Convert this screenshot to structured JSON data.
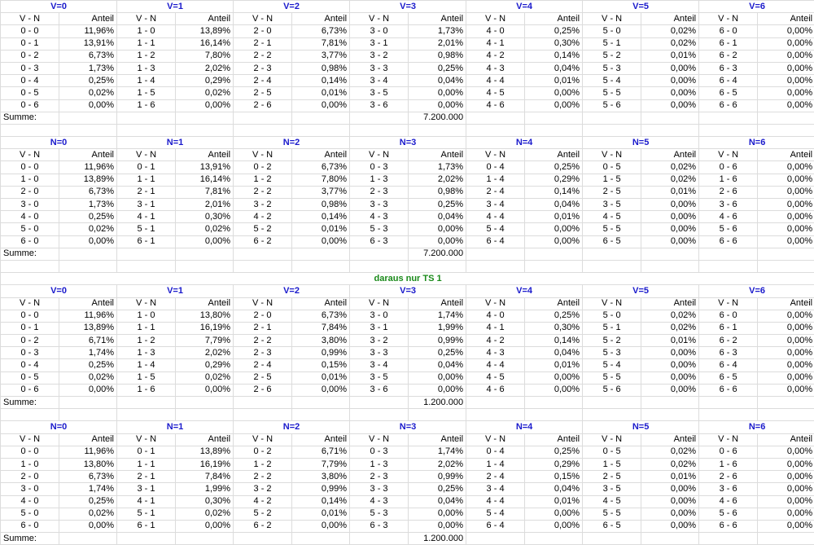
{
  "labels": {
    "vn": "V - N",
    "anteil": "Anteil",
    "summe": "Summe:"
  },
  "colors": {
    "header": "#1a1acc",
    "section": "#1a8a1a",
    "grid": "#dcdcdc"
  },
  "separator_title": "daraus nur TS 1",
  "blocks": [
    {
      "total": "7.200.000",
      "groups": [
        {
          "title": "V=0",
          "rows": [
            [
              "0 - 0",
              "11,96%"
            ],
            [
              "0 - 1",
              "13,91%"
            ],
            [
              "0 - 2",
              "6,73%"
            ],
            [
              "0 - 3",
              "1,73%"
            ],
            [
              "0 - 4",
              "0,25%"
            ],
            [
              "0 - 5",
              "0,02%"
            ],
            [
              "0 - 6",
              "0,00%"
            ]
          ]
        },
        {
          "title": "V=1",
          "rows": [
            [
              "1 - 0",
              "13,89%"
            ],
            [
              "1 - 1",
              "16,14%"
            ],
            [
              "1 - 2",
              "7,80%"
            ],
            [
              "1 - 3",
              "2,02%"
            ],
            [
              "1 - 4",
              "0,29%"
            ],
            [
              "1 - 5",
              "0,02%"
            ],
            [
              "1 - 6",
              "0,00%"
            ]
          ]
        },
        {
          "title": "V=2",
          "rows": [
            [
              "2 - 0",
              "6,73%"
            ],
            [
              "2 - 1",
              "7,81%"
            ],
            [
              "2 - 2",
              "3,77%"
            ],
            [
              "2 - 3",
              "0,98%"
            ],
            [
              "2 - 4",
              "0,14%"
            ],
            [
              "2 - 5",
              "0,01%"
            ],
            [
              "2 - 6",
              "0,00%"
            ]
          ]
        },
        {
          "title": "V=3",
          "rows": [
            [
              "3 - 0",
              "1,73%"
            ],
            [
              "3 - 1",
              "2,01%"
            ],
            [
              "3 - 2",
              "0,98%"
            ],
            [
              "3 - 3",
              "0,25%"
            ],
            [
              "3 - 4",
              "0,04%"
            ],
            [
              "3 - 5",
              "0,00%"
            ],
            [
              "3 - 6",
              "0,00%"
            ]
          ]
        },
        {
          "title": "V=4",
          "rows": [
            [
              "4 - 0",
              "0,25%"
            ],
            [
              "4 - 1",
              "0,30%"
            ],
            [
              "4 - 2",
              "0,14%"
            ],
            [
              "4 - 3",
              "0,04%"
            ],
            [
              "4 - 4",
              "0,01%"
            ],
            [
              "4 - 5",
              "0,00%"
            ],
            [
              "4 - 6",
              "0,00%"
            ]
          ]
        },
        {
          "title": "V=5",
          "rows": [
            [
              "5 - 0",
              "0,02%"
            ],
            [
              "5 - 1",
              "0,02%"
            ],
            [
              "5 - 2",
              "0,01%"
            ],
            [
              "5 - 3",
              "0,00%"
            ],
            [
              "5 - 4",
              "0,00%"
            ],
            [
              "5 - 5",
              "0,00%"
            ],
            [
              "5 - 6",
              "0,00%"
            ]
          ]
        },
        {
          "title": "V=6",
          "rows": [
            [
              "6 - 0",
              "0,00%"
            ],
            [
              "6 - 1",
              "0,00%"
            ],
            [
              "6 - 2",
              "0,00%"
            ],
            [
              "6 - 3",
              "0,00%"
            ],
            [
              "6 - 4",
              "0,00%"
            ],
            [
              "6 - 5",
              "0,00%"
            ],
            [
              "6 - 6",
              "0,00%"
            ]
          ]
        }
      ]
    },
    {
      "total": "7.200.000",
      "groups": [
        {
          "title": "N=0",
          "rows": [
            [
              "0 - 0",
              "11,96%"
            ],
            [
              "1 - 0",
              "13,89%"
            ],
            [
              "2 - 0",
              "6,73%"
            ],
            [
              "3 - 0",
              "1,73%"
            ],
            [
              "4 - 0",
              "0,25%"
            ],
            [
              "5 - 0",
              "0,02%"
            ],
            [
              "6 - 0",
              "0,00%"
            ]
          ]
        },
        {
          "title": "N=1",
          "rows": [
            [
              "0 - 1",
              "13,91%"
            ],
            [
              "1 - 1",
              "16,14%"
            ],
            [
              "2 - 1",
              "7,81%"
            ],
            [
              "3 - 1",
              "2,01%"
            ],
            [
              "4 - 1",
              "0,30%"
            ],
            [
              "5 - 1",
              "0,02%"
            ],
            [
              "6 - 1",
              "0,00%"
            ]
          ]
        },
        {
          "title": "N=2",
          "rows": [
            [
              "0 - 2",
              "6,73%"
            ],
            [
              "1 - 2",
              "7,80%"
            ],
            [
              "2 - 2",
              "3,77%"
            ],
            [
              "3 - 2",
              "0,98%"
            ],
            [
              "4 - 2",
              "0,14%"
            ],
            [
              "5 - 2",
              "0,01%"
            ],
            [
              "6 - 2",
              "0,00%"
            ]
          ]
        },
        {
          "title": "N=3",
          "rows": [
            [
              "0 - 3",
              "1,73%"
            ],
            [
              "1 - 3",
              "2,02%"
            ],
            [
              "2 - 3",
              "0,98%"
            ],
            [
              "3 - 3",
              "0,25%"
            ],
            [
              "4 - 3",
              "0,04%"
            ],
            [
              "5 - 3",
              "0,00%"
            ],
            [
              "6 - 3",
              "0,00%"
            ]
          ]
        },
        {
          "title": "N=4",
          "rows": [
            [
              "0 - 4",
              "0,25%"
            ],
            [
              "1 - 4",
              "0,29%"
            ],
            [
              "2 - 4",
              "0,14%"
            ],
            [
              "3 - 4",
              "0,04%"
            ],
            [
              "4 - 4",
              "0,01%"
            ],
            [
              "5 - 4",
              "0,00%"
            ],
            [
              "6 - 4",
              "0,00%"
            ]
          ]
        },
        {
          "title": "N=5",
          "rows": [
            [
              "0 - 5",
              "0,02%"
            ],
            [
              "1 - 5",
              "0,02%"
            ],
            [
              "2 - 5",
              "0,01%"
            ],
            [
              "3 - 5",
              "0,00%"
            ],
            [
              "4 - 5",
              "0,00%"
            ],
            [
              "5 - 5",
              "0,00%"
            ],
            [
              "6 - 5",
              "0,00%"
            ]
          ]
        },
        {
          "title": "N=6",
          "rows": [
            [
              "0 - 6",
              "0,00%"
            ],
            [
              "1 - 6",
              "0,00%"
            ],
            [
              "2 - 6",
              "0,00%"
            ],
            [
              "3 - 6",
              "0,00%"
            ],
            [
              "4 - 6",
              "0,00%"
            ],
            [
              "5 - 6",
              "0,00%"
            ],
            [
              "6 - 6",
              "0,00%"
            ]
          ]
        }
      ]
    },
    {
      "total": "1.200.000",
      "groups": [
        {
          "title": "V=0",
          "rows": [
            [
              "0 - 0",
              "11,96%"
            ],
            [
              "0 - 1",
              "13,89%"
            ],
            [
              "0 - 2",
              "6,71%"
            ],
            [
              "0 - 3",
              "1,74%"
            ],
            [
              "0 - 4",
              "0,25%"
            ],
            [
              "0 - 5",
              "0,02%"
            ],
            [
              "0 - 6",
              "0,00%"
            ]
          ]
        },
        {
          "title": "V=1",
          "rows": [
            [
              "1 - 0",
              "13,80%"
            ],
            [
              "1 - 1",
              "16,19%"
            ],
            [
              "1 - 2",
              "7,79%"
            ],
            [
              "1 - 3",
              "2,02%"
            ],
            [
              "1 - 4",
              "0,29%"
            ],
            [
              "1 - 5",
              "0,02%"
            ],
            [
              "1 - 6",
              "0,00%"
            ]
          ]
        },
        {
          "title": "V=2",
          "rows": [
            [
              "2 - 0",
              "6,73%"
            ],
            [
              "2 - 1",
              "7,84%"
            ],
            [
              "2 - 2",
              "3,80%"
            ],
            [
              "2 - 3",
              "0,99%"
            ],
            [
              "2 - 4",
              "0,15%"
            ],
            [
              "2 - 5",
              "0,01%"
            ],
            [
              "2 - 6",
              "0,00%"
            ]
          ]
        },
        {
          "title": "V=3",
          "rows": [
            [
              "3 - 0",
              "1,74%"
            ],
            [
              "3 - 1",
              "1,99%"
            ],
            [
              "3 - 2",
              "0,99%"
            ],
            [
              "3 - 3",
              "0,25%"
            ],
            [
              "3 - 4",
              "0,04%"
            ],
            [
              "3 - 5",
              "0,00%"
            ],
            [
              "3 - 6",
              "0,00%"
            ]
          ]
        },
        {
          "title": "V=4",
          "rows": [
            [
              "4 - 0",
              "0,25%"
            ],
            [
              "4 - 1",
              "0,30%"
            ],
            [
              "4 - 2",
              "0,14%"
            ],
            [
              "4 - 3",
              "0,04%"
            ],
            [
              "4 - 4",
              "0,01%"
            ],
            [
              "4 - 5",
              "0,00%"
            ],
            [
              "4 - 6",
              "0,00%"
            ]
          ]
        },
        {
          "title": "V=5",
          "rows": [
            [
              "5 - 0",
              "0,02%"
            ],
            [
              "5 - 1",
              "0,02%"
            ],
            [
              "5 - 2",
              "0,01%"
            ],
            [
              "5 - 3",
              "0,00%"
            ],
            [
              "5 - 4",
              "0,00%"
            ],
            [
              "5 - 5",
              "0,00%"
            ],
            [
              "5 - 6",
              "0,00%"
            ]
          ]
        },
        {
          "title": "V=6",
          "rows": [
            [
              "6 - 0",
              "0,00%"
            ],
            [
              "6 - 1",
              "0,00%"
            ],
            [
              "6 - 2",
              "0,00%"
            ],
            [
              "6 - 3",
              "0,00%"
            ],
            [
              "6 - 4",
              "0,00%"
            ],
            [
              "6 - 5",
              "0,00%"
            ],
            [
              "6 - 6",
              "0,00%"
            ]
          ]
        }
      ]
    },
    {
      "total": "1.200.000",
      "groups": [
        {
          "title": "N=0",
          "rows": [
            [
              "0 - 0",
              "11,96%"
            ],
            [
              "1 - 0",
              "13,80%"
            ],
            [
              "2 - 0",
              "6,73%"
            ],
            [
              "3 - 0",
              "1,74%"
            ],
            [
              "4 - 0",
              "0,25%"
            ],
            [
              "5 - 0",
              "0,02%"
            ],
            [
              "6 - 0",
              "0,00%"
            ]
          ]
        },
        {
          "title": "N=1",
          "rows": [
            [
              "0 - 1",
              "13,89%"
            ],
            [
              "1 - 1",
              "16,19%"
            ],
            [
              "2 - 1",
              "7,84%"
            ],
            [
              "3 - 1",
              "1,99%"
            ],
            [
              "4 - 1",
              "0,30%"
            ],
            [
              "5 - 1",
              "0,02%"
            ],
            [
              "6 - 1",
              "0,00%"
            ]
          ]
        },
        {
          "title": "N=2",
          "rows": [
            [
              "0 - 2",
              "6,71%"
            ],
            [
              "1 - 2",
              "7,79%"
            ],
            [
              "2 - 2",
              "3,80%"
            ],
            [
              "3 - 2",
              "0,99%"
            ],
            [
              "4 - 2",
              "0,14%"
            ],
            [
              "5 - 2",
              "0,01%"
            ],
            [
              "6 - 2",
              "0,00%"
            ]
          ]
        },
        {
          "title": "N=3",
          "rows": [
            [
              "0 - 3",
              "1,74%"
            ],
            [
              "1 - 3",
              "2,02%"
            ],
            [
              "2 - 3",
              "0,99%"
            ],
            [
              "3 - 3",
              "0,25%"
            ],
            [
              "4 - 3",
              "0,04%"
            ],
            [
              "5 - 3",
              "0,00%"
            ],
            [
              "6 - 3",
              "0,00%"
            ]
          ]
        },
        {
          "title": "N=4",
          "rows": [
            [
              "0 - 4",
              "0,25%"
            ],
            [
              "1 - 4",
              "0,29%"
            ],
            [
              "2 - 4",
              "0,15%"
            ],
            [
              "3 - 4",
              "0,04%"
            ],
            [
              "4 - 4",
              "0,01%"
            ],
            [
              "5 - 4",
              "0,00%"
            ],
            [
              "6 - 4",
              "0,00%"
            ]
          ]
        },
        {
          "title": "N=5",
          "rows": [
            [
              "0 - 5",
              "0,02%"
            ],
            [
              "1 - 5",
              "0,02%"
            ],
            [
              "2 - 5",
              "0,01%"
            ],
            [
              "3 - 5",
              "0,00%"
            ],
            [
              "4 - 5",
              "0,00%"
            ],
            [
              "5 - 5",
              "0,00%"
            ],
            [
              "6 - 5",
              "0,00%"
            ]
          ]
        },
        {
          "title": "N=6",
          "rows": [
            [
              "0 - 6",
              "0,00%"
            ],
            [
              "1 - 6",
              "0,00%"
            ],
            [
              "2 - 6",
              "0,00%"
            ],
            [
              "3 - 6",
              "0,00%"
            ],
            [
              "4 - 6",
              "0,00%"
            ],
            [
              "5 - 6",
              "0,00%"
            ],
            [
              "6 - 6",
              "0,00%"
            ]
          ]
        }
      ]
    }
  ]
}
